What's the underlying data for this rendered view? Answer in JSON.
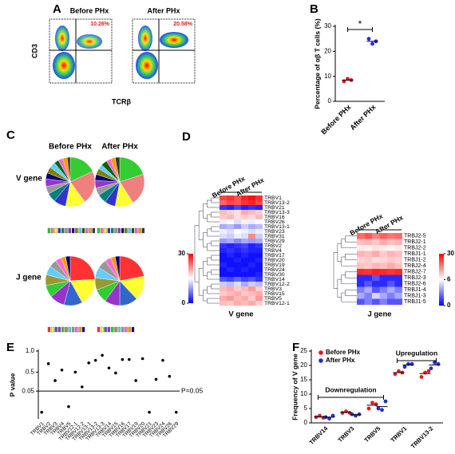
{
  "flow": {
    "label": "A",
    "titles": [
      "Before PHx",
      "After PHx"
    ],
    "percentages": [
      "10.26%",
      "20.58%"
    ],
    "ylabel": "CD3",
    "xlabel": "TCRβ"
  },
  "chart_data": [
    {
      "type": "strip",
      "label": "B",
      "ylabel": "Percentage of αβ T cells (%)",
      "categories": [
        "Before PHx",
        "After PHx"
      ],
      "colors": [
        "#e31a1c",
        "#1f2fd0"
      ],
      "values": [
        [
          8,
          9,
          8.5
        ],
        [
          25,
          23,
          24
        ]
      ],
      "ylim": [
        0,
        30
      ],
      "yticks": [
        0,
        10,
        20,
        30
      ],
      "significance": "*"
    },
    {
      "type": "pie",
      "label": "C",
      "titles": [
        "Before PHx",
        "After PHx"
      ],
      "rows": [
        {
          "name": "V gene",
          "colors": [
            "#33cc33",
            "#f08080",
            "#ffff33",
            "#3333cc",
            "#008080",
            "#999999",
            "#9933cc",
            "#000080",
            "#808000",
            "#66ccff",
            "#006600",
            "#ff66cc",
            "#ff9900",
            "#333333"
          ],
          "values": [
            [
              18,
              22,
              13,
              8,
              6,
              5,
              5,
              4,
              4,
              4,
              3,
              3,
              3,
              2
            ],
            [
              20,
              21,
              12,
              7,
              6,
              5,
              5,
              4,
              4,
              3,
              4,
              3,
              3,
              3
            ]
          ]
        },
        {
          "name": "J gene",
          "colors": [
            "#ff3333",
            "#ffff33",
            "#3366cc",
            "#9933cc",
            "#33cc33",
            "#999933",
            "#66ccff",
            "#999999",
            "#ff66cc",
            "#ff9900",
            "#000080"
          ],
          "values": [
            [
              24,
              18,
              12,
              10,
              8,
              7,
              6,
              5,
              4,
              3,
              3
            ],
            [
              22,
              16,
              12,
              10,
              9,
              8,
              7,
              6,
              4,
              3,
              3
            ]
          ]
        }
      ]
    },
    {
      "type": "heatmap",
      "label": "D",
      "groups": [
        "Before PHx",
        "After PHx"
      ],
      "maps": [
        {
          "title": "V gene",
          "clim": [
            0,
            30
          ],
          "ticks": [
            0,
            30
          ],
          "rows": [
            "TRBV1",
            "TRBV13-2",
            "TRBV21",
            "TRBV13-3",
            "TRBV16",
            "TRBV26",
            "TRBV13-1",
            "TRBV23",
            "TRBV31",
            "TRBV29",
            "TRBV2",
            "TRBV4",
            "TRBV17",
            "TRBV20",
            "TRBV19",
            "TRBV24",
            "TRBV30",
            "TRBV14",
            "TRBV12-2",
            "TRBV3",
            "TRBV15",
            "TRBV5",
            "TRBV12-1"
          ],
          "values": [
            [
              26,
              27,
              25,
              28,
              29,
              27
            ],
            [
              24,
              26,
              25,
              27,
              28,
              26
            ],
            [
              3,
              2,
              4,
              2,
              3,
              2
            ],
            [
              19,
              18,
              17,
              20,
              19,
              18
            ],
            [
              18,
              19,
              17,
              18,
              17,
              19
            ],
            [
              14,
              15,
              13,
              16,
              14,
              15
            ],
            [
              10,
              11,
              9,
              12,
              10,
              11
            ],
            [
              14,
              13,
              15,
              14,
              13,
              14
            ],
            [
              13,
              12,
              14,
              13,
              22,
              12
            ],
            [
              9,
              10,
              8,
              10,
              9,
              10
            ],
            [
              3,
              2,
              3,
              4,
              2,
              3
            ],
            [
              2,
              3,
              2,
              3,
              2,
              2
            ],
            [
              1,
              2,
              1,
              2,
              1,
              1
            ],
            [
              1,
              1,
              2,
              1,
              1,
              2
            ],
            [
              2,
              1,
              1,
              1,
              2,
              1
            ],
            [
              1,
              2,
              1,
              2,
              1,
              1
            ],
            [
              1,
              1,
              1,
              1,
              1,
              2
            ],
            [
              5,
              4,
              6,
              4,
              5,
              3
            ],
            [
              12,
              11,
              13,
              10,
              12,
              11
            ],
            [
              19,
              20,
              18,
              19,
              21,
              18
            ],
            [
              18,
              19,
              20,
              18,
              19,
              20
            ],
            [
              20,
              21,
              19,
              20,
              18,
              21
            ],
            [
              19,
              18,
              20,
              19,
              20,
              18
            ]
          ]
        },
        {
          "title": "J gene",
          "clim": [
            0,
            30
          ],
          "ticks": [
            0,
            6,
            30
          ],
          "rows": [
            "TRBJ2-5",
            "TRBJ2-1",
            "TRBJ2-2",
            "TRBJ1-1",
            "TRBJ1-2",
            "TRBJ2-4",
            "TRBJ2-7",
            "TRBJ2-3",
            "TRBJ2-6",
            "TRBJ1-4",
            "TRBJ1-3",
            "TRBJ1-5"
          ],
          "values": [
            [
              20,
              22,
              18,
              21,
              19,
              20
            ],
            [
              12,
              13,
              11,
              14,
              12,
              13
            ],
            [
              8,
              7,
              9,
              8,
              7,
              8
            ],
            [
              13,
              12,
              14,
              11,
              13,
              12
            ],
            [
              10,
              11,
              9,
              10,
              11,
              10
            ],
            [
              12,
              11,
              13,
              12,
              14,
              12
            ],
            [
              26,
              25,
              27,
              26,
              25,
              26
            ],
            [
              1,
              1,
              2,
              1,
              1,
              1
            ],
            [
              1,
              2,
              1,
              1,
              2,
              1
            ],
            [
              3,
              4,
              2,
              3,
              4,
              3
            ],
            [
              4,
              3,
              5,
              4,
              3,
              4
            ],
            [
              2,
              3,
              2,
              3,
              2,
              2
            ]
          ]
        }
      ]
    },
    {
      "type": "scatter",
      "label": "E",
      "ylabel": "P value",
      "categories": [
        "TRBV1",
        "TRBV2",
        "TRBV3",
        "TRBV4",
        "TRBV5",
        "TRBV12-1",
        "TRBV12-2",
        "TRBV13-1",
        "TRBV13-2",
        "TRBV13-3",
        "TRBV14",
        "TRBV15",
        "TRBV16",
        "TRBV17",
        "TRBV19",
        "TRBV20",
        "TRBV21",
        "TRBV23",
        "TRBV24",
        "TRBV26",
        "TRBV29"
      ],
      "values": [
        0.012,
        0.7,
        0.3,
        0.55,
        0.022,
        0.5,
        0.15,
        0.72,
        0.78,
        0.9,
        0.6,
        0.48,
        0.8,
        0.8,
        0.3,
        0.82,
        0.012,
        0.33,
        0.78,
        0.4,
        0.012
      ],
      "ylim": [
        0,
        1
      ],
      "yticks": [
        0.05,
        0.5,
        {
          "value": 1,
          "label": "1.0"
        }
      ],
      "threshold": {
        "value": 0.05,
        "label": "P=0.05"
      }
    },
    {
      "type": "strip",
      "label": "F",
      "ylabel": "Frequency of V gene",
      "categories": [
        "TRBV14",
        "TRBV3",
        "TRBV5",
        "TRBV1",
        "TRBV13-2"
      ],
      "series": [
        {
          "name": "Before PHx",
          "color": "#e31a1c",
          "values": [
            [
              2,
              2.5,
              1.8
            ],
            [
              3.5,
              4,
              3.5
            ],
            [
              5,
              7,
              6.5
            ],
            [
              17,
              18,
              17.5
            ],
            [
              16,
              17.5,
              18
            ]
          ]
        },
        {
          "name": "After PHx",
          "color": "#1f2fd0",
          "values": [
            [
              2,
              1.5,
              2.5
            ],
            [
              3,
              2.5,
              3
            ],
            [
              5,
              4.5,
              7.5
            ],
            [
              19.5,
              20.5,
              20.5
            ],
            [
              19,
              21,
              20.5
            ]
          ]
        }
      ],
      "ylim": [
        0,
        25
      ],
      "yticks": [
        0,
        5,
        10,
        15,
        20,
        25
      ],
      "annotations": [
        "Downregulation",
        "Upregulation"
      ]
    }
  ]
}
